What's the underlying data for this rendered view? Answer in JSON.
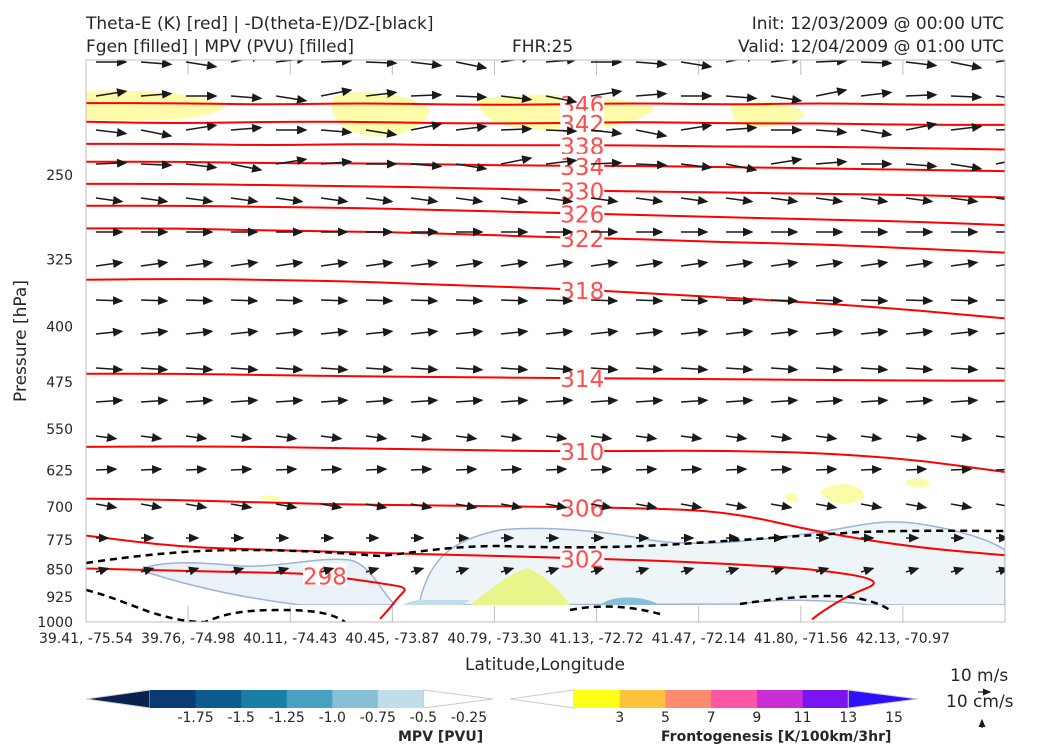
{
  "header": {
    "title_left_1": "Theta-E (K) [red] | -D(theta-E)/DZ-[black]",
    "title_left_2": "Fgen [filled] | MPV (PVU) [filled]",
    "title_center": "FHR:25",
    "title_right_1": "Init: 12/03/2009 @ 00:00 UTC",
    "title_right_2": "Valid: 12/04/2009 @ 01:00 UTC"
  },
  "axes": {
    "ylabel": "Pressure [hPa]",
    "xlabel": "Latitude,Longitude"
  },
  "legend": {
    "wind_label": "10 m/s",
    "vert_label": "10 cm/s"
  },
  "colorbars": {
    "mpv": {
      "label": "MPV [PVU]",
      "ticks": [
        "-1.75",
        "-1.5",
        "-1.25",
        "-1.0",
        "-0.75",
        "-0.5",
        "-0.25"
      ],
      "colors": [
        "#08214f",
        "#0b3b73",
        "#0d5a8e",
        "#1b7ea5",
        "#48a0c2",
        "#86bfd6",
        "#c1dde9",
        "#ffffff"
      ]
    },
    "fgen": {
      "label": "Frontogenesis [K/100km/3hr]",
      "ticks": [
        "3",
        "5",
        "7",
        "9",
        "11",
        "13",
        "15"
      ],
      "colors": [
        "#ffffff",
        "#ffff1a",
        "#ffc23d",
        "#ff8a6e",
        "#ff57a6",
        "#cc2ed6",
        "#7a14f0",
        "#2c10ff"
      ]
    }
  },
  "chart_data": {
    "type": "cross-section",
    "y_scale": "log",
    "y_inverted": true,
    "ylim": [
      1000,
      175
    ],
    "yticks": [
      250,
      325,
      400,
      475,
      550,
      625,
      700,
      775,
      850,
      925,
      1000
    ],
    "xticks": [
      "39.41, -75.54",
      "39.76, -74.98",
      "40.11, -74.43",
      "40.45, -73.87",
      "40.79, -73.30",
      "41.13, -72.72",
      "41.47, -72.14",
      "41.80, -71.56",
      "42.13, -70.97"
    ],
    "theta_e_contours": [
      {
        "label": "346",
        "points": [
          [
            0,
            200
          ],
          [
            10,
            200
          ],
          [
            20,
            201
          ],
          [
            30,
            200
          ],
          [
            40,
            201
          ],
          [
            50,
            201
          ],
          [
            60,
            200
          ],
          [
            70,
            201
          ],
          [
            80,
            200
          ],
          [
            90,
            201
          ],
          [
            100,
            201
          ]
        ]
      },
      {
        "label": "342",
        "points": [
          [
            0,
            212
          ],
          [
            10,
            213
          ],
          [
            20,
            212
          ],
          [
            30,
            212
          ],
          [
            40,
            213
          ],
          [
            50,
            213
          ],
          [
            60,
            212
          ],
          [
            70,
            213
          ],
          [
            80,
            213
          ],
          [
            90,
            214
          ],
          [
            100,
            214
          ]
        ]
      },
      {
        "label": "338",
        "points": [
          [
            0,
            227
          ],
          [
            10,
            227
          ],
          [
            20,
            228
          ],
          [
            30,
            227
          ],
          [
            40,
            228
          ],
          [
            50,
            228
          ],
          [
            60,
            228
          ],
          [
            70,
            229
          ],
          [
            80,
            229
          ],
          [
            90,
            230
          ],
          [
            100,
            231
          ]
        ]
      },
      {
        "label": "334",
        "points": [
          [
            0,
            240
          ],
          [
            10,
            240
          ],
          [
            20,
            241
          ],
          [
            30,
            241
          ],
          [
            40,
            242
          ],
          [
            50,
            243
          ],
          [
            60,
            243
          ],
          [
            70,
            244
          ],
          [
            80,
            245
          ],
          [
            90,
            246
          ],
          [
            100,
            247
          ]
        ]
      },
      {
        "label": "330",
        "points": [
          [
            0,
            257
          ],
          [
            10,
            257
          ],
          [
            20,
            258
          ],
          [
            30,
            259
          ],
          [
            40,
            260
          ],
          [
            50,
            262
          ],
          [
            60,
            263
          ],
          [
            70,
            264
          ],
          [
            80,
            265
          ],
          [
            90,
            266
          ],
          [
            100,
            268
          ]
        ]
      },
      {
        "label": "326",
        "points": [
          [
            0,
            275
          ],
          [
            10,
            275
          ],
          [
            20,
            276
          ],
          [
            30,
            277
          ],
          [
            40,
            279
          ],
          [
            50,
            281
          ],
          [
            60,
            283
          ],
          [
            70,
            285
          ],
          [
            80,
            287
          ],
          [
            90,
            289
          ],
          [
            100,
            292
          ]
        ]
      },
      {
        "label": "322",
        "points": [
          [
            0,
            295
          ],
          [
            10,
            295
          ],
          [
            20,
            297
          ],
          [
            30,
            298
          ],
          [
            40,
            300
          ],
          [
            50,
            303
          ],
          [
            60,
            305
          ],
          [
            70,
            308
          ],
          [
            80,
            310
          ],
          [
            90,
            314
          ],
          [
            100,
            318
          ]
        ]
      },
      {
        "label": "318",
        "points": [
          [
            0,
            346
          ],
          [
            10,
            345
          ],
          [
            20,
            346
          ],
          [
            30,
            348
          ],
          [
            40,
            352
          ],
          [
            50,
            355
          ],
          [
            60,
            360
          ],
          [
            70,
            366
          ],
          [
            80,
            372
          ],
          [
            90,
            380
          ],
          [
            100,
            390
          ]
        ]
      },
      {
        "label": "314",
        "points": [
          [
            0,
            463
          ],
          [
            10,
            463
          ],
          [
            20,
            465
          ],
          [
            30,
            467
          ],
          [
            40,
            468
          ],
          [
            50,
            469
          ],
          [
            60,
            470
          ],
          [
            70,
            471
          ],
          [
            80,
            472
          ],
          [
            90,
            473
          ],
          [
            100,
            473
          ]
        ]
      },
      {
        "label": "310",
        "points": [
          [
            0,
            581
          ],
          [
            10,
            580
          ],
          [
            20,
            581
          ],
          [
            30,
            584
          ],
          [
            40,
            586
          ],
          [
            50,
            589
          ],
          [
            60,
            588
          ],
          [
            70,
            588
          ],
          [
            80,
            592
          ],
          [
            90,
            604
          ],
          [
            100,
            628
          ]
        ]
      },
      {
        "label": "306",
        "points": [
          [
            0,
            682
          ],
          [
            10,
            685
          ],
          [
            20,
            691
          ],
          [
            30,
            695
          ],
          [
            40,
            697
          ],
          [
            50,
            700
          ],
          [
            60,
            702
          ],
          [
            70,
            710
          ],
          [
            80,
            758
          ],
          [
            90,
            793
          ],
          [
            100,
            813
          ]
        ]
      },
      {
        "label": "302",
        "points": [
          [
            0,
            765
          ],
          [
            10,
            792
          ],
          [
            20,
            800
          ],
          [
            30,
            806
          ],
          [
            40,
            812
          ],
          [
            50,
            818
          ],
          [
            60,
            825
          ],
          [
            70,
            835
          ],
          [
            80,
            850
          ],
          [
            87,
            880
          ],
          [
            83,
            920
          ],
          [
            80,
            970
          ],
          [
            79,
            992
          ]
        ]
      },
      {
        "label": "298",
        "points": [
          [
            0,
            847
          ],
          [
            10,
            853
          ],
          [
            20,
            858
          ],
          [
            25,
            862
          ],
          [
            33,
            890
          ],
          [
            35,
            900
          ],
          [
            34,
            925
          ],
          [
            33,
            960
          ],
          [
            32,
            990
          ]
        ]
      }
    ]
  }
}
